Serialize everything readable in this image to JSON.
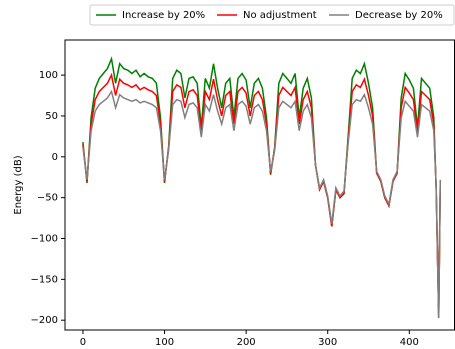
{
  "chart_data": {
    "type": "line",
    "y_label": "Energy (dB)",
    "x": [
      0,
      5,
      10,
      15,
      20,
      25,
      30,
      35,
      40,
      45,
      50,
      55,
      60,
      65,
      70,
      75,
      80,
      85,
      90,
      95,
      100,
      105,
      110,
      115,
      120,
      125,
      130,
      135,
      140,
      145,
      150,
      155,
      160,
      165,
      170,
      175,
      180,
      185,
      190,
      195,
      200,
      205,
      210,
      215,
      220,
      225,
      230,
      235,
      240,
      245,
      250,
      255,
      260,
      265,
      270,
      275,
      280,
      285,
      290,
      295,
      300,
      305,
      310,
      315,
      320,
      325,
      330,
      335,
      340,
      345,
      350,
      355,
      360,
      365,
      370,
      375,
      380,
      385,
      390,
      395,
      400,
      405,
      410,
      415,
      420,
      425,
      430,
      433,
      436,
      438
    ],
    "series": [
      {
        "name": "Increase by 20%",
        "color": "#008000",
        "values": [
          18,
          -32,
          48,
          84,
          96,
          102,
          108,
          120,
          90,
          114,
          108,
          106,
          102,
          106,
          98,
          102,
          98,
          96,
          90,
          48,
          -32,
          12,
          96,
          106,
          102,
          72,
          96,
          98,
          90,
          36,
          96,
          84,
          114,
          84,
          60,
          90,
          96,
          48,
          96,
          102,
          94,
          60,
          90,
          96,
          84,
          48,
          -22,
          12,
          90,
          102,
          96,
          90,
          102,
          48,
          84,
          96,
          72,
          -10,
          -40,
          -30,
          -50,
          -85,
          -40,
          -50,
          -45,
          24,
          96,
          106,
          102,
          114,
          90,
          60,
          -20,
          -30,
          -50,
          -60,
          -30,
          -20,
          72,
          102,
          94,
          84,
          36,
          96,
          90,
          84,
          48,
          -40,
          -197,
          -30
        ]
      },
      {
        "name": "No adjustment",
        "color": "#ff0000",
        "values": [
          15,
          -30,
          40,
          70,
          80,
          85,
          90,
          100,
          75,
          95,
          90,
          88,
          85,
          88,
          82,
          85,
          82,
          80,
          75,
          40,
          -30,
          10,
          80,
          88,
          85,
          60,
          80,
          82,
          75,
          30,
          80,
          70,
          95,
          70,
          50,
          75,
          80,
          40,
          80,
          85,
          78,
          50,
          75,
          80,
          70,
          40,
          -20,
          10,
          75,
          85,
          80,
          75,
          85,
          40,
          70,
          80,
          60,
          -10,
          -40,
          -30,
          -50,
          -85,
          -40,
          -50,
          -45,
          20,
          80,
          88,
          85,
          95,
          75,
          50,
          -20,
          -30,
          -50,
          -60,
          -30,
          -20,
          60,
          85,
          78,
          70,
          30,
          80,
          75,
          70,
          40,
          -40,
          -197,
          -30
        ]
      },
      {
        "name": "Decrease by 20%",
        "color": "#808080",
        "values": [
          12,
          -28,
          32,
          56,
          64,
          68,
          72,
          80,
          60,
          76,
          72,
          70,
          68,
          70,
          66,
          68,
          66,
          64,
          60,
          32,
          -28,
          8,
          64,
          70,
          68,
          48,
          64,
          66,
          60,
          24,
          64,
          56,
          76,
          56,
          40,
          60,
          64,
          32,
          64,
          68,
          62,
          40,
          60,
          64,
          56,
          32,
          -18,
          8,
          60,
          68,
          64,
          60,
          68,
          32,
          56,
          64,
          48,
          -10,
          -38,
          -28,
          -48,
          -82,
          -38,
          -48,
          -42,
          16,
          64,
          70,
          68,
          76,
          60,
          40,
          -18,
          -28,
          -48,
          -58,
          -28,
          -18,
          48,
          68,
          62,
          56,
          24,
          64,
          60,
          56,
          32,
          -38,
          -197,
          -28
        ]
      }
    ],
    "xlim": [
      -22,
      456
    ],
    "ylim": [
      -212,
      143
    ],
    "xticks": [
      0,
      100,
      200,
      300,
      400
    ],
    "yticks": [
      100,
      50,
      0,
      {
        "value": -50,
        "label": "−50"
      },
      {
        "value": -100,
        "label": "−100"
      },
      {
        "value": -150,
        "label": "−150"
      },
      {
        "value": -200,
        "label": "−200"
      }
    ]
  }
}
